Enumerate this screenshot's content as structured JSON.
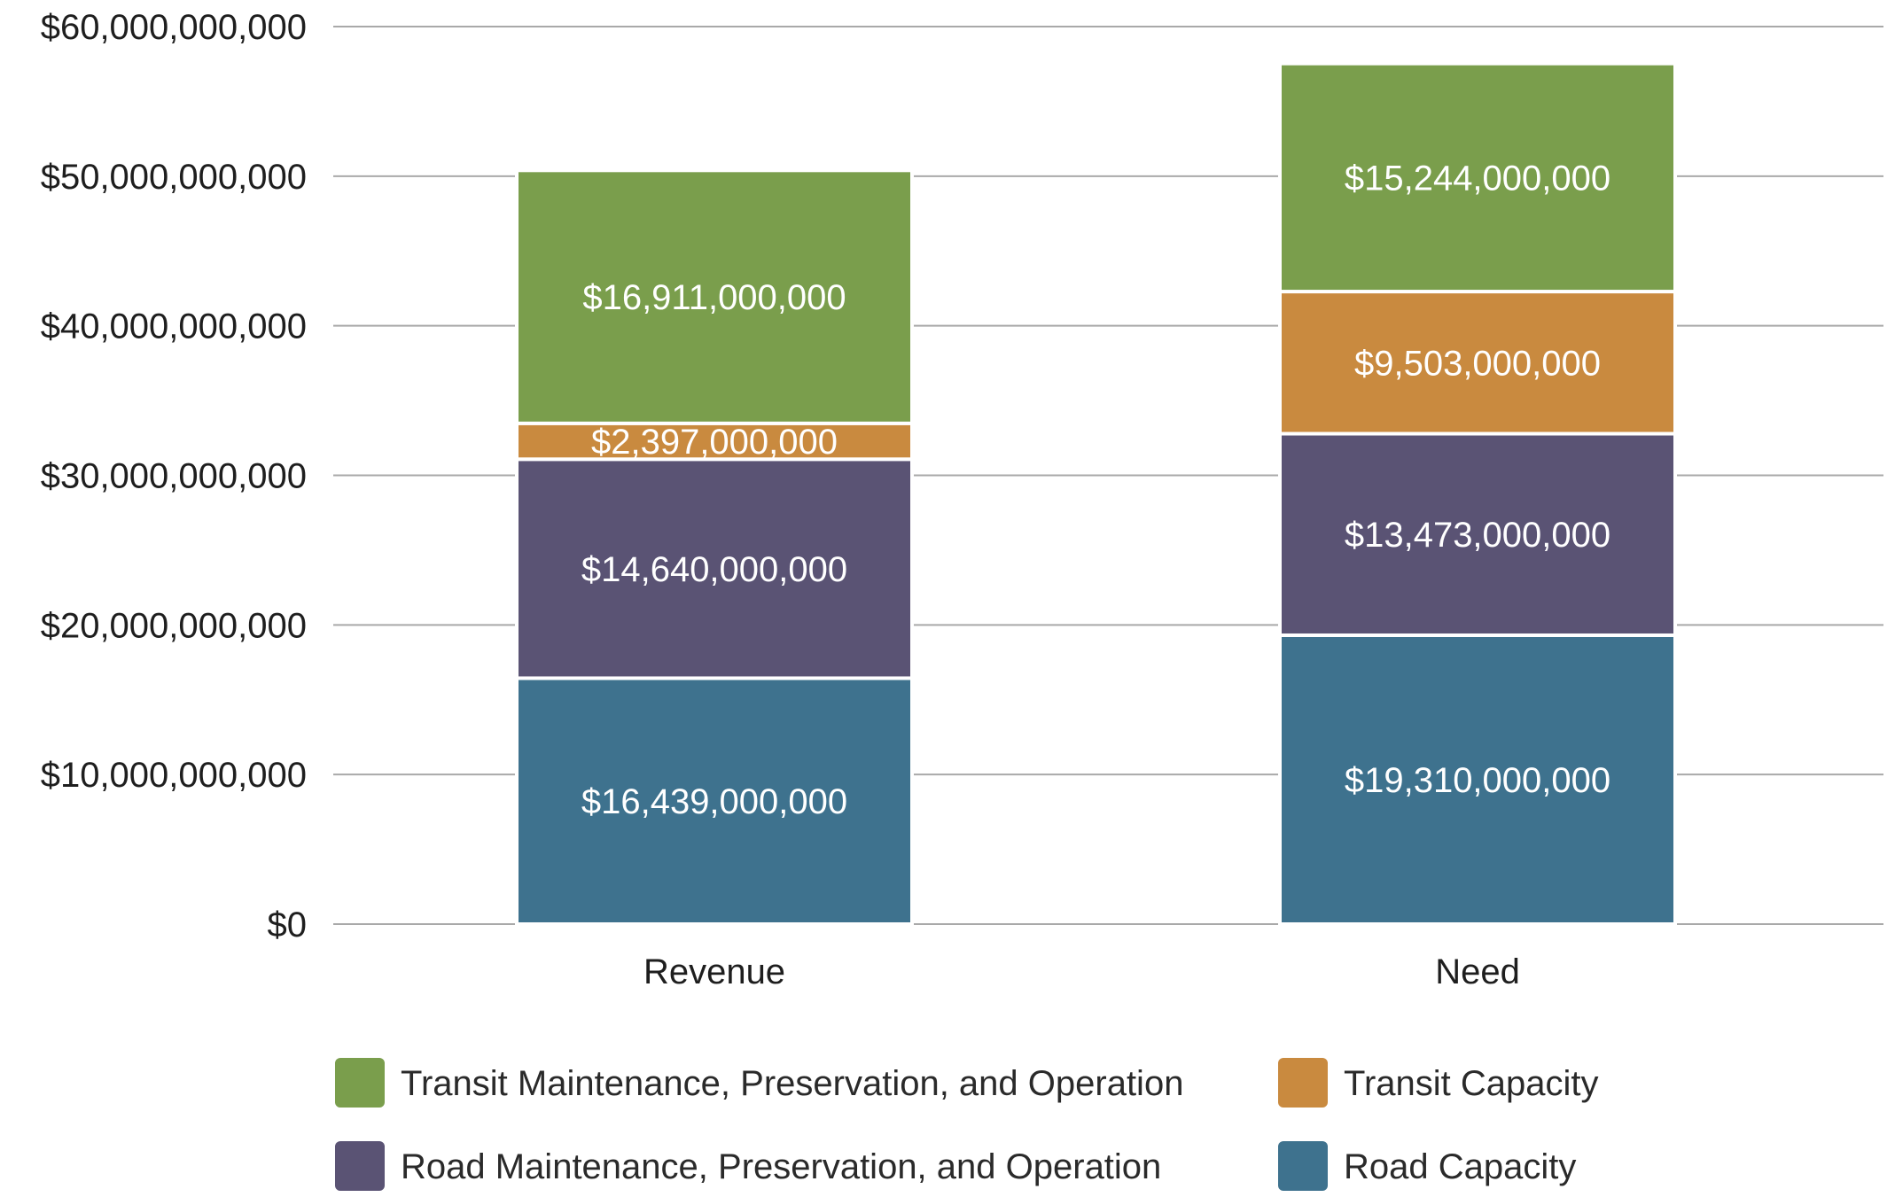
{
  "chart_data": {
    "type": "bar",
    "stacked": true,
    "title": "",
    "xlabel": "",
    "ylabel": "",
    "ylim": [
      0,
      60000000000
    ],
    "yticks": [
      0,
      10000000000,
      20000000000,
      30000000000,
      40000000000,
      50000000000,
      60000000000
    ],
    "ytick_labels": [
      "$0",
      "$10,000,000,000",
      "$20,000,000,000",
      "$30,000,000,000",
      "$40,000,000,000",
      "$50,000,000,000",
      "$60,000,000,000"
    ],
    "grid": true,
    "legend_position": "bottom",
    "categories": [
      "Revenue",
      "Need"
    ],
    "series": [
      {
        "name": "Road Capacity",
        "color": "#3e728e",
        "values": [
          16439000000,
          19310000000
        ],
        "labels": [
          "$16,439,000,000",
          "$19,310,000,000"
        ]
      },
      {
        "name": "Road Maintenance, Preservation, and Operation",
        "color": "#5a5374",
        "values": [
          14640000000,
          13473000000
        ],
        "labels": [
          "$14,640,000,000",
          "$13,473,000,000"
        ]
      },
      {
        "name": "Transit Capacity",
        "color": "#c98a3f",
        "values": [
          2397000000,
          9503000000
        ],
        "labels": [
          "$2,397,000,000",
          "$9,503,000,000"
        ]
      },
      {
        "name": "Transit Maintenance, Preservation, and Operation",
        "color": "#7a9e4c",
        "values": [
          16911000000,
          15244000000
        ],
        "labels": [
          "$16,911,000,000",
          "$15,244,000,000"
        ]
      }
    ],
    "legend_order": [
      "Transit Maintenance, Preservation, and Operation",
      "Transit Capacity",
      "Road Maintenance, Preservation, and Operation",
      "Road Capacity"
    ],
    "gridline_color": "#a9a9a9"
  }
}
